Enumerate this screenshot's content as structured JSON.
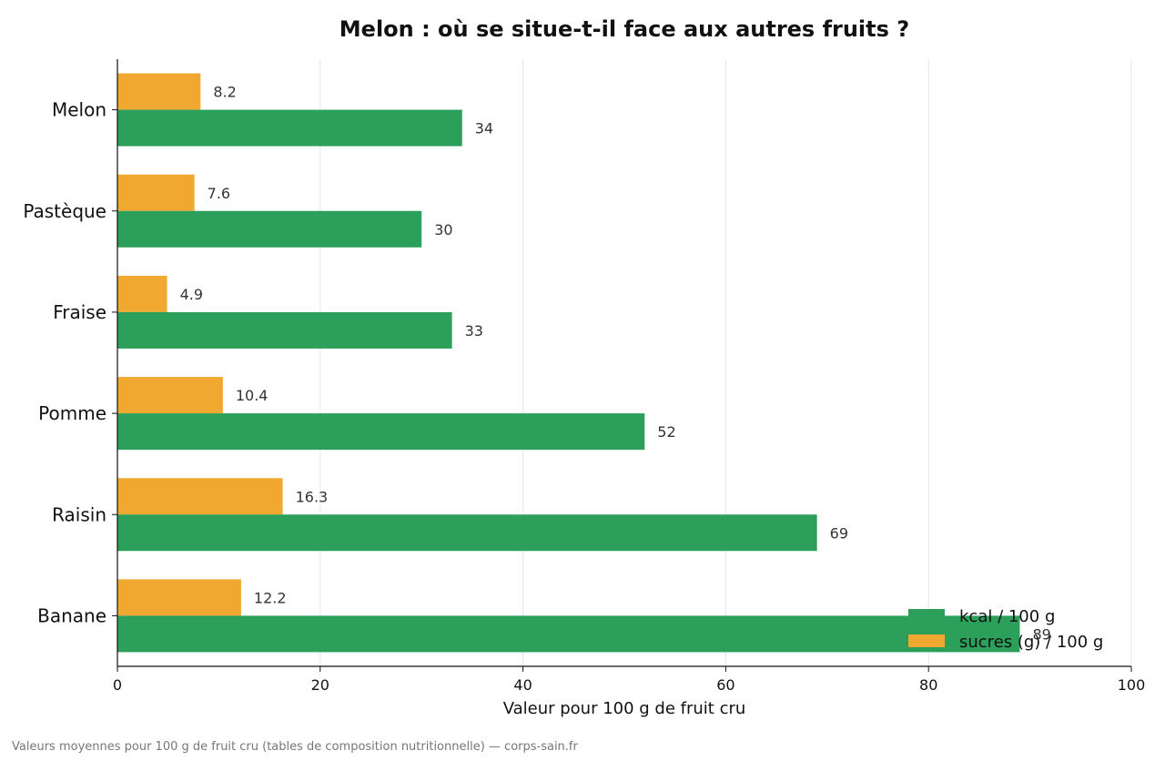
{
  "chart_data": {
    "type": "bar",
    "orientation": "horizontal",
    "title": "Melon : où se situe-t-il face aux autres fruits ?",
    "xlabel": "Valeur pour 100 g de fruit cru",
    "ylabel": "",
    "xlim": [
      0,
      100
    ],
    "x_ticks": [
      0,
      20,
      40,
      60,
      80,
      100
    ],
    "grid": "vertical",
    "legend_position": "bottom-right",
    "categories": [
      "Melon",
      "Pastèque",
      "Fraise",
      "Pomme",
      "Raisin",
      "Banane"
    ],
    "series": [
      {
        "name": "kcal / 100 g",
        "color": "#2ca05a",
        "values": [
          34,
          30,
          33,
          52,
          69,
          89
        ],
        "labels": [
          "34",
          "30",
          "33",
          "52",
          "69",
          "89"
        ]
      },
      {
        "name": "sucres (g) / 100 g",
        "color": "#f0a830",
        "values": [
          8.2,
          7.6,
          4.9,
          10.4,
          16.3,
          12.2
        ],
        "labels": [
          "8.2",
          "7.6",
          "4.9",
          "10.4",
          "16.3",
          "12.2"
        ]
      }
    ],
    "footnote": "Valeurs moyennes pour 100 g de fruit cru (tables de composition nutritionnelle) — corps-sain.fr"
  }
}
